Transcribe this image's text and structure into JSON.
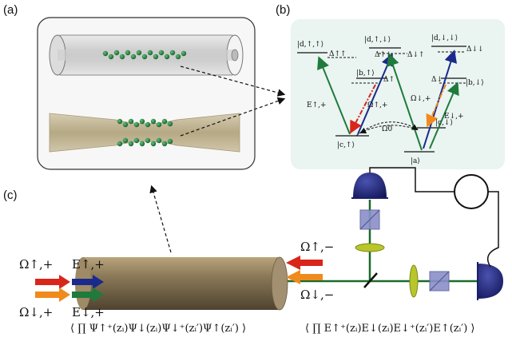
{
  "panels": {
    "a": {
      "label": "(a)"
    },
    "b": {
      "label": "(b)"
    },
    "c": {
      "label": "(c)"
    }
  },
  "levels": {
    "d_up_up": "|d,↑,↑⟩",
    "d_up_down": "|d,↑,↓⟩",
    "d_down_down": "|d,↓,↓⟩",
    "b_up": "|b,↑⟩",
    "b_down": "|b,↓⟩",
    "c_up": "|c,↑⟩",
    "c_down": "|c,↓⟩",
    "a": "|a⟩"
  },
  "detunings": {
    "upup": "Δ↑↑",
    "updown_l": "Δ↑↓",
    "updown_r": "Δ↓↑",
    "downdown": "Δ↓↓",
    "up": "Δ↑",
    "down": "Δ↓"
  },
  "fields": {
    "E_up_plus": "E↑,+",
    "E_down_plus": "E↓,+",
    "Omega_up_plus": "Ω↑,+",
    "Omega_down_plus": "Ω↓,+",
    "Omega_0": "Ω0",
    "Omega_up_minus": "Ω↑,−",
    "Omega_down_minus": "Ω↓,−"
  },
  "formulas": {
    "left": "⟨ ∏ Ψ↑⁺(zᵢ)Ψ↓(zᵢ)Ψ↓⁺(zᵢ′)Ψ↑(zᵢ′) ⟩",
    "right": "⟨ ∏ E↑⁺(zᵢ)E↓(zᵢ)E↓⁺(zᵢ′)E↑(zᵢ′) ⟩",
    "prod_upper": "n",
    "prod_lower": "i=1"
  },
  "colors": {
    "green": "#1e7b3c",
    "blue": "#1a2a8c",
    "red": "#d8261b",
    "orange": "#f08a1c",
    "navy_detector": "#1b1f6b",
    "beam": "#1a6b2a",
    "panel_b_bg": "#eaf4f1",
    "atom": "#1f7a3a"
  }
}
